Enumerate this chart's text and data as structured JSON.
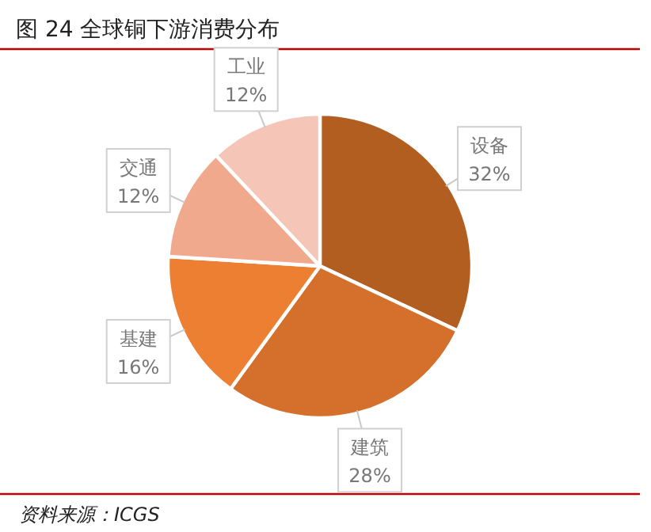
{
  "chart_data": {
    "type": "pie",
    "title": "图 24 全球铜下游消费分布",
    "categories": [
      "设备",
      "建筑",
      "基建",
      "交通",
      "工业"
    ],
    "values": [
      32,
      28,
      16,
      12,
      12
    ],
    "colors": [
      "#b35e21",
      "#d4702b",
      "#ed7f32",
      "#f0a98c",
      "#f5c5b7"
    ],
    "value_labels": [
      "32%",
      "28%",
      "16%",
      "12%",
      "12%"
    ],
    "annotations": [
      "资料来源：ICGS"
    ]
  }
}
